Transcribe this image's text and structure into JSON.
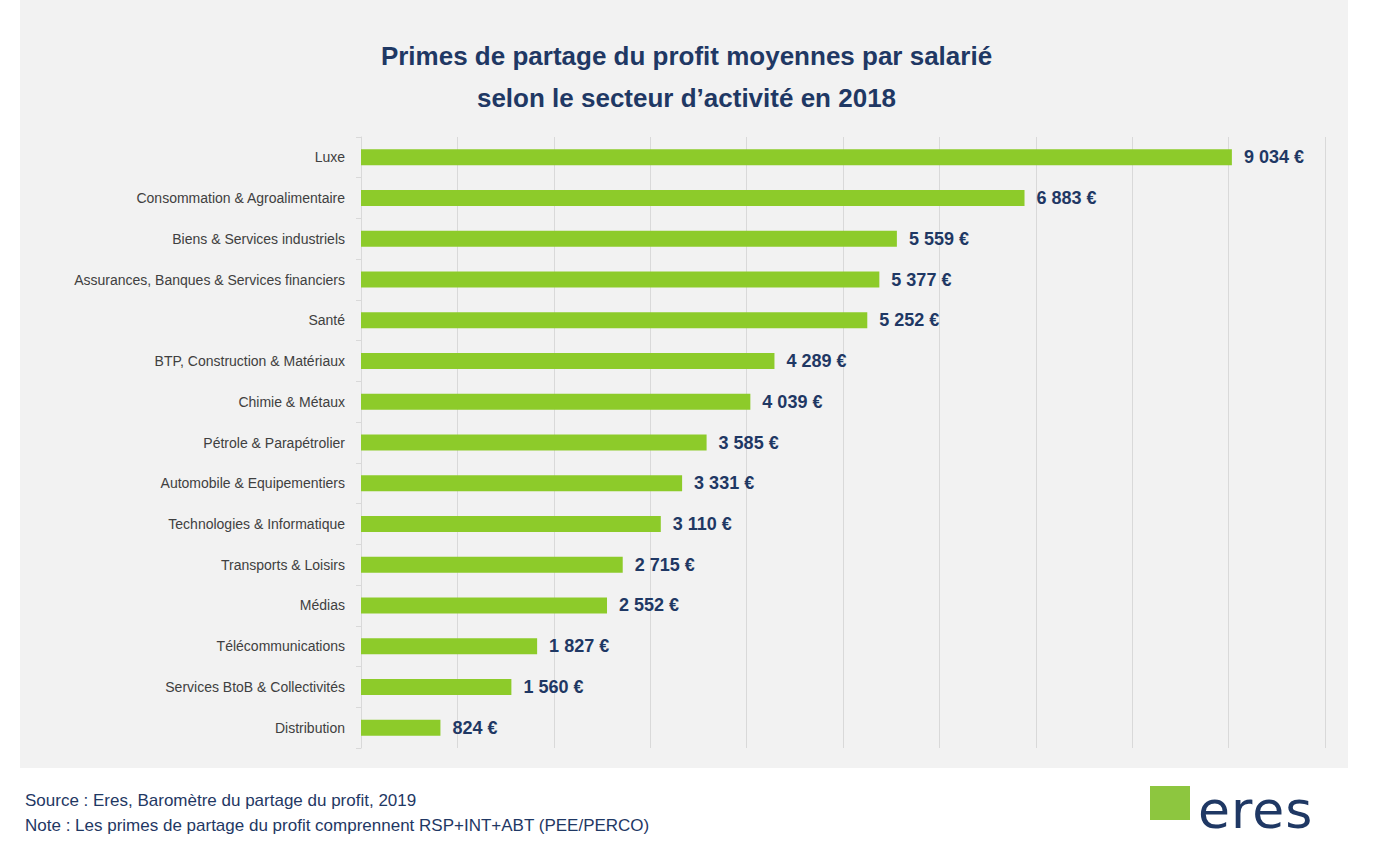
{
  "chart_data": {
    "type": "bar",
    "title": "Primes de partage du profit moyennes par salarié\nselon le secteur d’activité en 2018",
    "categories": [
      "Luxe",
      "Consommation & Agroalimentaire",
      "Biens & Services industriels",
      "Assurances, Banques & Services financiers",
      "Santé",
      "BTP, Construction & Matériaux",
      "Chimie & Métaux",
      "Pétrole & Parapétrolier",
      "Automobile & Equipementiers",
      "Technologies & Informatique",
      "Transports & Loisirs",
      "Médias",
      "Télécommunications",
      "Services BtoB & Collectivités",
      "Distribution"
    ],
    "values": [
      9034,
      6883,
      5559,
      5377,
      5252,
      4289,
      4039,
      3585,
      3331,
      3110,
      2715,
      2552,
      1827,
      1560,
      824
    ],
    "value_labels": [
      "9 034 €",
      "6 883 €",
      "5 559 €",
      "5 377 €",
      "5 252 €",
      "4 289 €",
      "4 039 €",
      "3 585 €",
      "3 331 €",
      "3 110 €",
      "2 715 €",
      "2 552 €",
      "1 827 €",
      "1 560 €",
      "824 €"
    ],
    "color": "#8dcb2a",
    "orientation": "horizontal",
    "xlim": [
      0,
      10000
    ],
    "xticks": [
      0,
      1000,
      2000,
      3000,
      4000,
      5000,
      6000,
      7000,
      8000,
      9000,
      10000
    ],
    "grid": true,
    "data_labels": true,
    "tick_labels": "y",
    "source": "Source : Eres, Baromètre du partage du profit, 2019",
    "note": "Note : Les primes de partage du profit comprennent RSP+INT+ABT (PEE/PERCO)",
    "logo": "eres"
  }
}
